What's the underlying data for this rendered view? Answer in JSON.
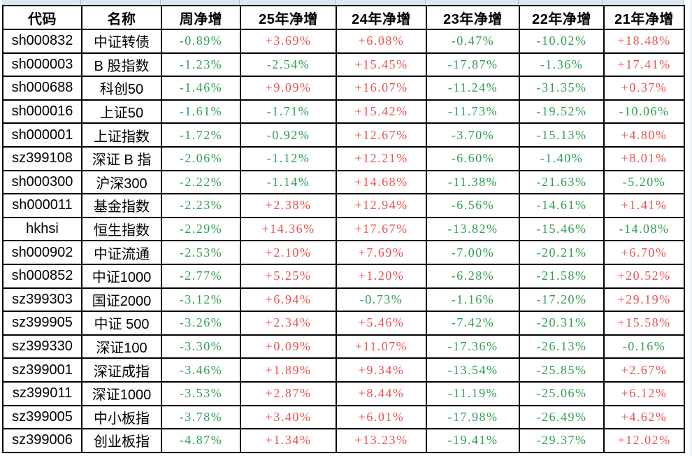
{
  "colors": {
    "positive_red": "#ea5252",
    "negative_green": "#2d9e51",
    "grid_black": "#000000",
    "top_strip_fill": "#dbe6f2",
    "top_strip_line": "#a9bdd1",
    "right_edge_line": "#c2cfdd"
  },
  "chart_data": {
    "type": "table",
    "headers": [
      "代码",
      "名称",
      "周净增",
      "25年净增",
      "24年净增",
      "23年净增",
      "22年净增",
      "21年净增"
    ],
    "rows": [
      {
        "code": "sh000832",
        "name": "中证转债",
        "values": [
          "-0.89%",
          "+3.69%",
          "+6.08%",
          "-0.47%",
          "-10.02%",
          "+18.48%"
        ]
      },
      {
        "code": "sh000003",
        "name": "B 股指数",
        "values": [
          "-1.23%",
          "-2.54%",
          "+15.45%",
          "-17.87%",
          "-1.36%",
          "+17.41%"
        ]
      },
      {
        "code": "sh000688",
        "name": "科创50",
        "values": [
          "-1.46%",
          "+9.09%",
          "+16.07%",
          "-11.24%",
          "-31.35%",
          "+0.37%"
        ]
      },
      {
        "code": "sh000016",
        "name": "上证50",
        "values": [
          "-1.61%",
          "-1.71%",
          "+15.42%",
          "-11.73%",
          "-19.52%",
          "-10.06%"
        ]
      },
      {
        "code": "sh000001",
        "name": "上证指数",
        "values": [
          "-1.72%",
          "-0.92%",
          "+12.67%",
          "-3.70%",
          "-15.13%",
          "+4.80%"
        ]
      },
      {
        "code": "sz399108",
        "name": "深证 B 指",
        "values": [
          "-2.06%",
          "-1.12%",
          "+12.21%",
          "-6.60%",
          "-1.40%",
          "+8.01%"
        ]
      },
      {
        "code": "sh000300",
        "name": "沪深300",
        "values": [
          "-2.22%",
          "-1.14%",
          "+14.68%",
          "-11.38%",
          "-21.63%",
          "-5.20%"
        ]
      },
      {
        "code": "sh000011",
        "name": "基金指数",
        "values": [
          "-2.23%",
          "+2.38%",
          "+12.94%",
          "-6.56%",
          "-14.61%",
          "+1.41%"
        ]
      },
      {
        "code": "hkhsi",
        "name": "恒生指数",
        "values": [
          "-2.29%",
          "+14.36%",
          "+17.67%",
          "-13.82%",
          "-15.46%",
          "-14.08%"
        ]
      },
      {
        "code": "sh000902",
        "name": "中证流通",
        "values": [
          "-2.53%",
          "+2.10%",
          "+7.69%",
          "-7.00%",
          "-20.21%",
          "+6.70%"
        ]
      },
      {
        "code": "sh000852",
        "name": "中证1000",
        "values": [
          "-2.77%",
          "+5.25%",
          "+1.20%",
          "-6.28%",
          "-21.58%",
          "+20.52%"
        ]
      },
      {
        "code": "sz399303",
        "name": "国证2000",
        "values": [
          "-3.12%",
          "+6.94%",
          "-0.73%",
          "-1.16%",
          "-17.20%",
          "+29.19%"
        ]
      },
      {
        "code": "sz399905",
        "name": "中证 500",
        "values": [
          "-3.26%",
          "+2.34%",
          "+5.46%",
          "-7.42%",
          "-20.31%",
          "+15.58%"
        ]
      },
      {
        "code": "sz399330",
        "name": "深证100",
        "values": [
          "-3.30%",
          "+0.09%",
          "+11.07%",
          "-17.36%",
          "-26.13%",
          "-0.16%"
        ]
      },
      {
        "code": "sz399001",
        "name": "深证成指",
        "values": [
          "-3.46%",
          "+1.89%",
          "+9.34%",
          "-13.54%",
          "-25.85%",
          "+2.67%"
        ]
      },
      {
        "code": "sz399011",
        "name": "深证1000",
        "values": [
          "-3.53%",
          "+2.87%",
          "+8.44%",
          "-11.19%",
          "-25.06%",
          "+6.12%"
        ]
      },
      {
        "code": "sz399005",
        "name": "中小板指",
        "values": [
          "-3.78%",
          "+3.40%",
          "+6.01%",
          "-17.98%",
          "-26.49%",
          "+4.62%"
        ]
      },
      {
        "code": "sz399006",
        "name": "创业板指",
        "values": [
          "-4.87%",
          "+1.34%",
          "+13.23%",
          "-19.41%",
          "-29.37%",
          "+12.02%"
        ]
      }
    ]
  }
}
